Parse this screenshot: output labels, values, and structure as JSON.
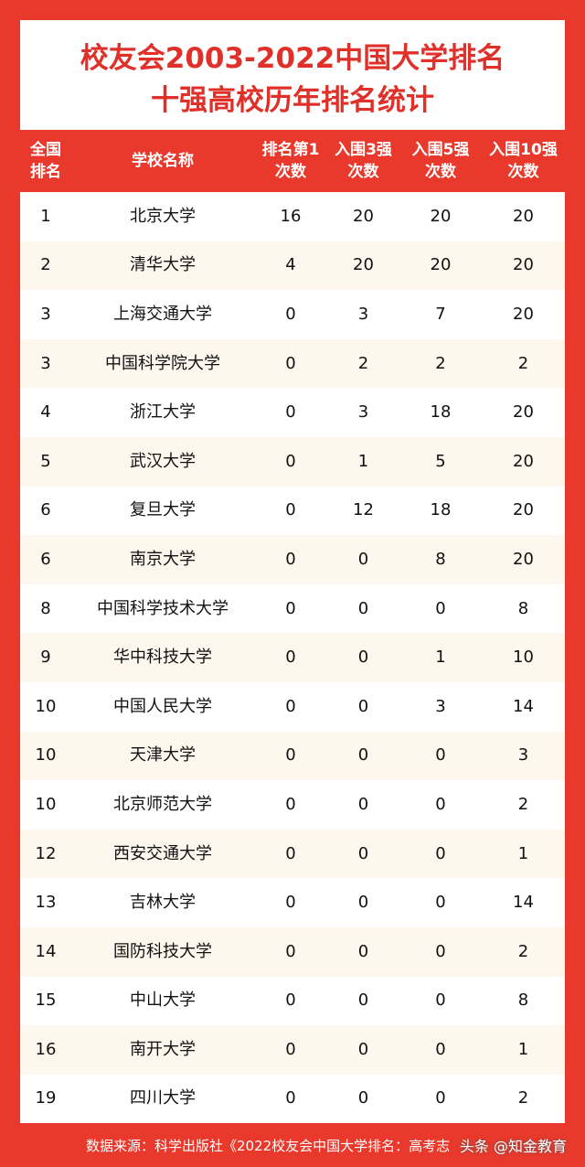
{
  "header": {
    "title_lines": [
      "校友会2003-2022中国大学排名",
      "十强高校历年排名统计"
    ]
  },
  "table": {
    "columns": [
      [
        "全国",
        "排名"
      ],
      [
        "学校名称"
      ],
      [
        "排名第1",
        "次数"
      ],
      [
        "入围3强",
        "次数"
      ],
      [
        "入围5强",
        "次数"
      ],
      [
        "入围10强",
        "次数"
      ]
    ],
    "rows": [
      [
        1,
        "北京大学",
        16,
        20,
        20,
        20
      ],
      [
        2,
        "清华大学",
        4,
        20,
        20,
        20
      ],
      [
        3,
        "上海交通大学",
        0,
        3,
        7,
        20
      ],
      [
        3,
        "中国科学院大学",
        0,
        2,
        2,
        2
      ],
      [
        4,
        "浙江大学",
        0,
        3,
        18,
        20
      ],
      [
        5,
        "武汉大学",
        0,
        1,
        5,
        20
      ],
      [
        6,
        "复旦大学",
        0,
        12,
        18,
        20
      ],
      [
        6,
        "南京大学",
        0,
        0,
        8,
        20
      ],
      [
        8,
        "中国科学技术大学",
        0,
        0,
        0,
        8
      ],
      [
        9,
        "华中科技大学",
        0,
        0,
        1,
        10
      ],
      [
        10,
        "中国人民大学",
        0,
        0,
        3,
        14
      ],
      [
        10,
        "天津大学",
        0,
        0,
        0,
        3
      ],
      [
        10,
        "北京师范大学",
        0,
        0,
        0,
        2
      ],
      [
        12,
        "西安交通大学",
        0,
        0,
        0,
        1
      ],
      [
        13,
        "吉林大学",
        0,
        0,
        0,
        14
      ],
      [
        14,
        "国防科技大学",
        0,
        0,
        0,
        2
      ],
      [
        15,
        "中山大学",
        0,
        0,
        0,
        8
      ],
      [
        16,
        "南开大学",
        0,
        0,
        0,
        1
      ],
      [
        19,
        "四川大学",
        0,
        0,
        0,
        2
      ]
    ]
  },
  "footer": {
    "source": "数据来源：科学出版社《2022校友会中国大学排名：高考志",
    "watermark": "头条 @知金教育"
  }
}
